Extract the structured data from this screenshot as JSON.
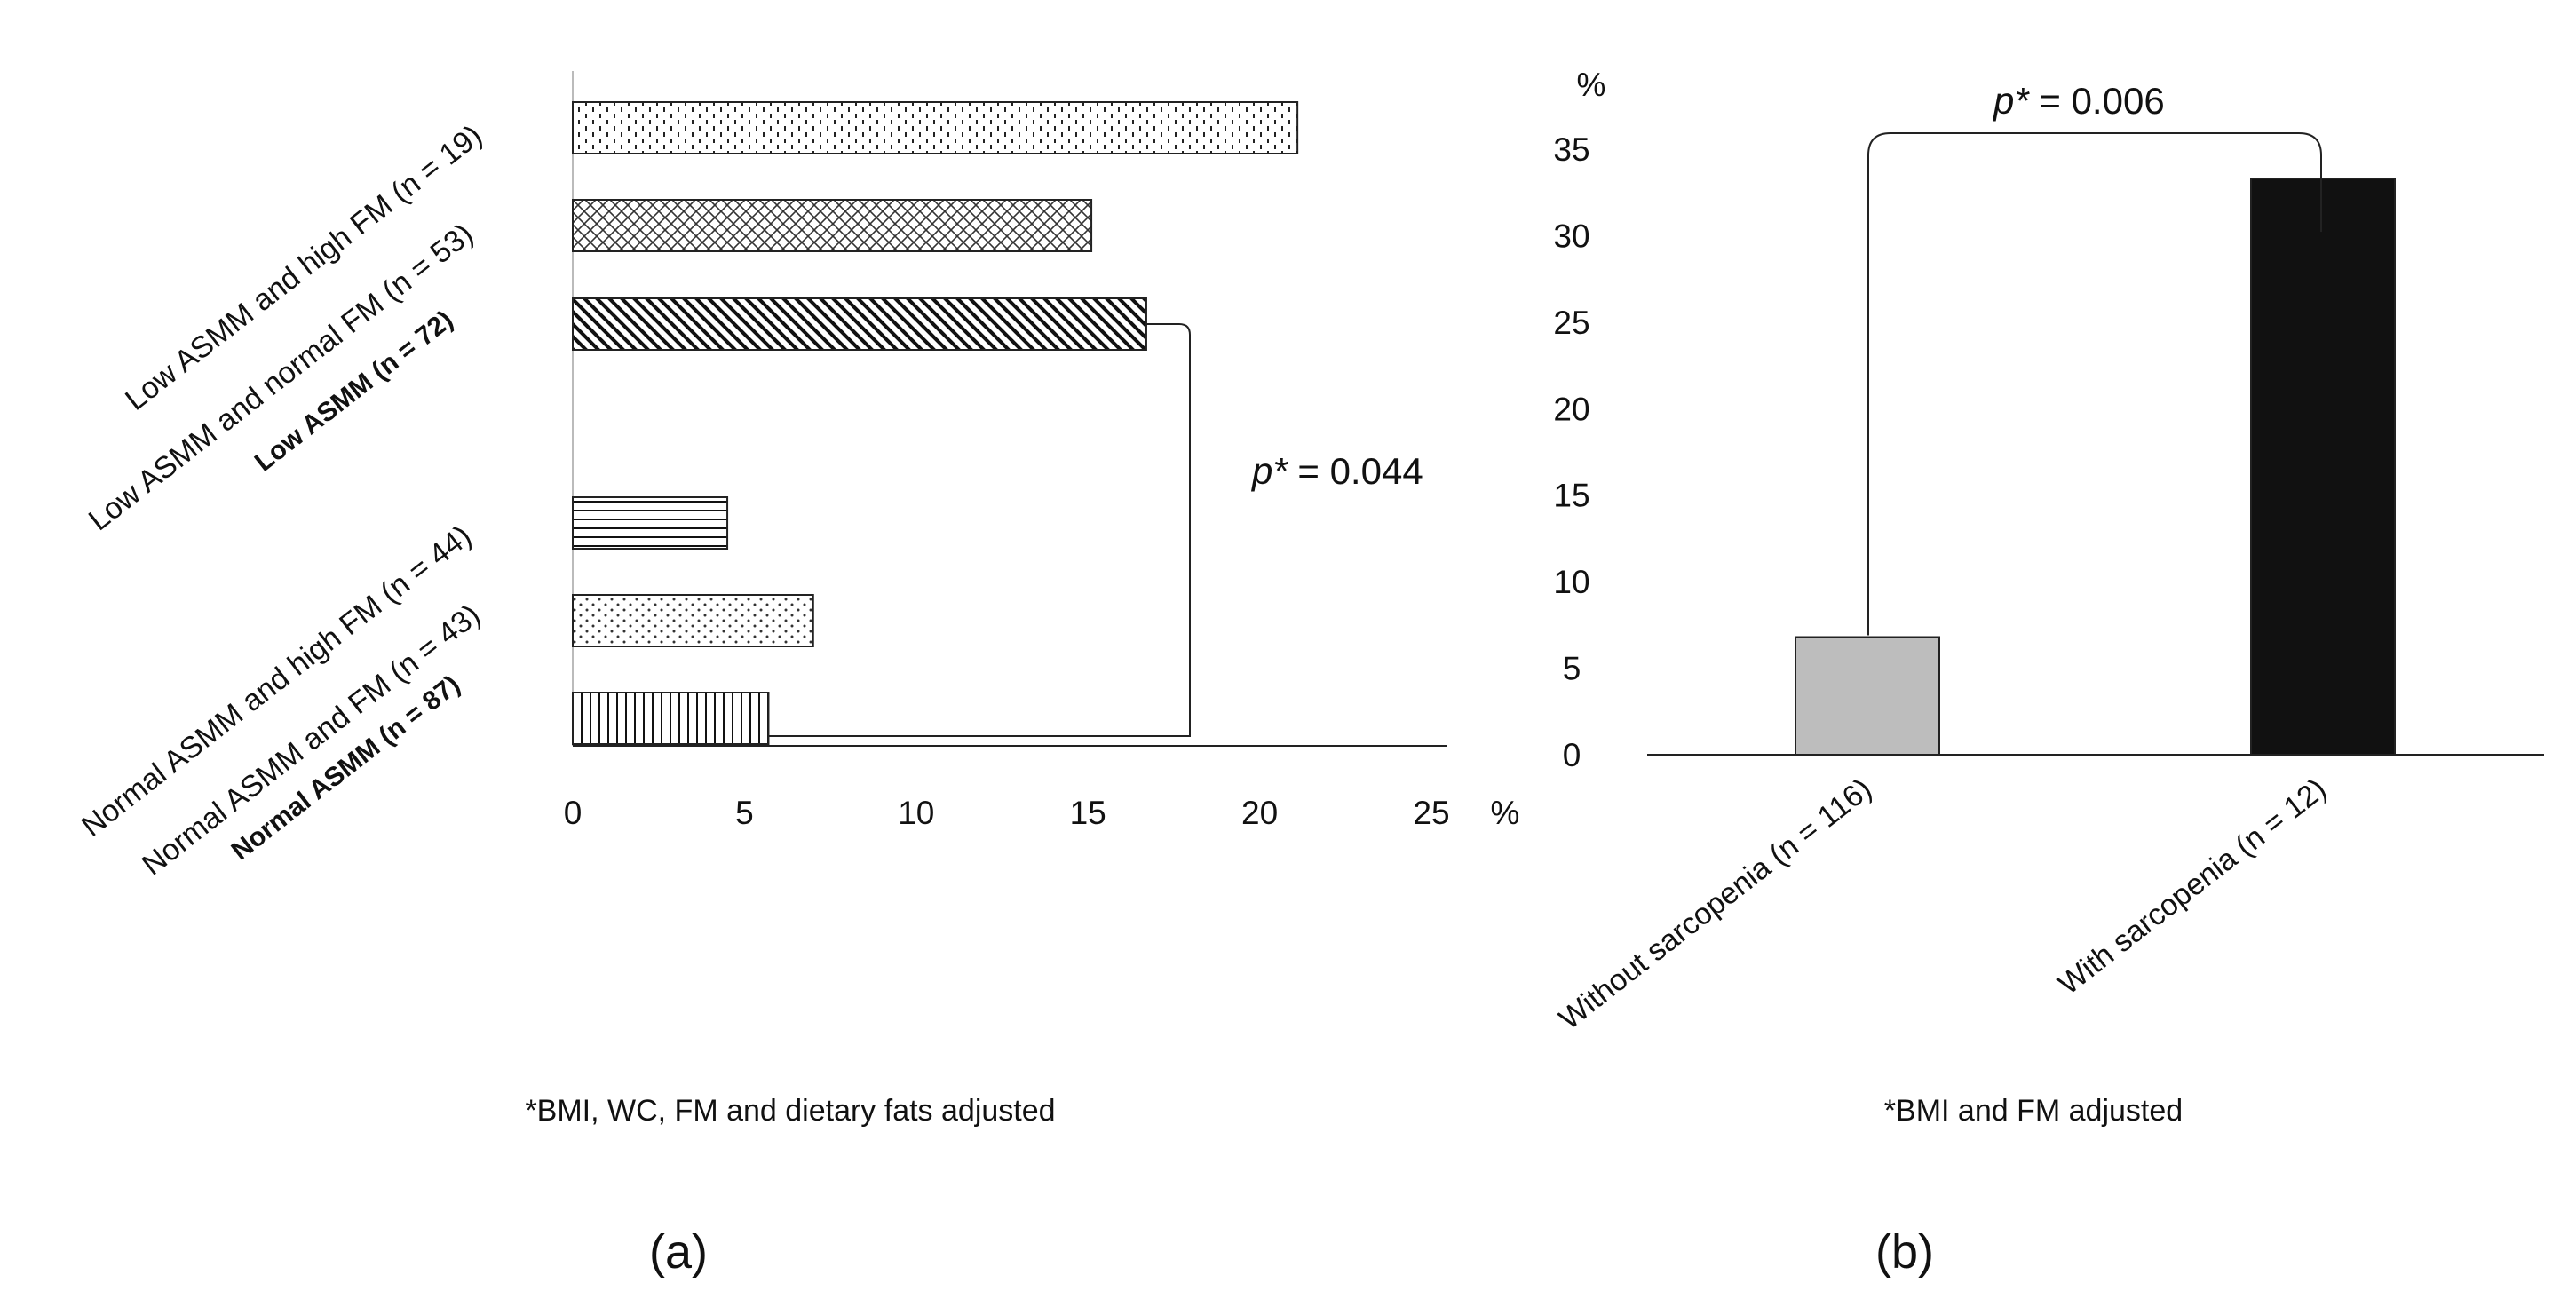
{
  "chart_data": [
    {
      "type": "bar",
      "orientation": "horizontal",
      "panel_label": "(a)",
      "categories": [
        "Low ASMM and high FM (n = 19)",
        "Low ASMM and normal FM (n = 53)",
        "Low ASMM (n = 72)",
        "Normal ASMM and high FM (n = 44)",
        "Normal ASMM and FM (n = 43)",
        "Normal  ASMM (n = 87)"
      ],
      "bold_categories": [
        "Low ASMM (n = 72)",
        "Normal  ASMM (n = 87)"
      ],
      "values": [
        21.1,
        15.1,
        16.7,
        4.5,
        7.0,
        5.7
      ],
      "patterns": [
        "dashes",
        "crosshatch",
        "diagonal",
        "horizontal",
        "dots",
        "vertical"
      ],
      "xlim": [
        0,
        25
      ],
      "xticks": [
        "0",
        "5",
        "10",
        "15",
        "20",
        "25"
      ],
      "xunit": "%",
      "annotation": {
        "p_label": "p*",
        "p_value": "= 0.044",
        "between": [
          "Low ASMM (n = 72)",
          "Normal  ASMM (n = 87)"
        ]
      },
      "footnote": "*BMI, WC, FM and dietary fats adjusted"
    },
    {
      "type": "bar",
      "orientation": "vertical",
      "panel_label": "(b)",
      "categories": [
        "Without sarcopenia (n = 116)",
        "With sarcopenia (n = 12)"
      ],
      "values": [
        6.8,
        33.3
      ],
      "colors": [
        "#bdbdbd",
        "#111111"
      ],
      "ylim": [
        0,
        35
      ],
      "yticks": [
        "0",
        "5",
        "10",
        "15",
        "20",
        "25",
        "30",
        "35"
      ],
      "yunit": "%",
      "annotation": {
        "p_label": "p*",
        "p_value": " = 0.006"
      },
      "footnote": "*BMI and FM  adjusted"
    }
  ]
}
